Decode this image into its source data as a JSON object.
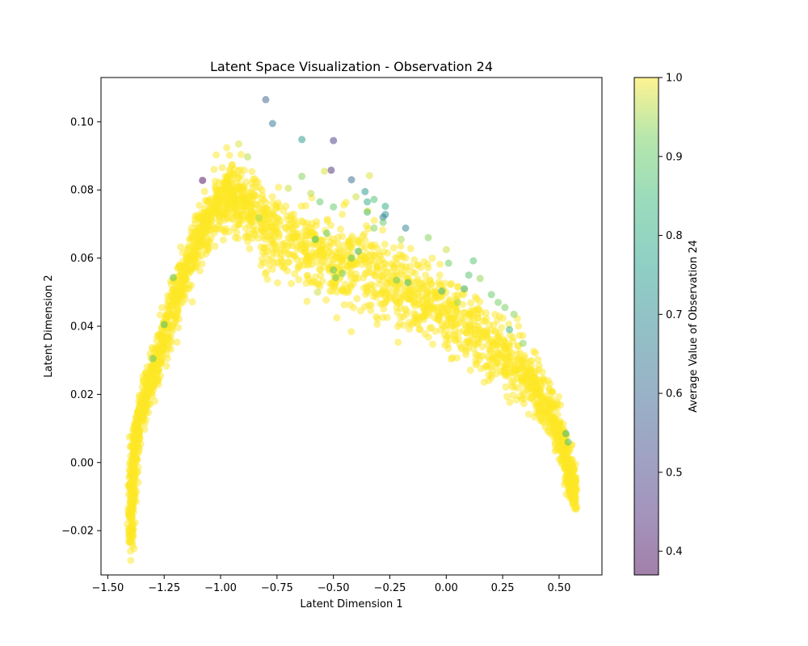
{
  "chart_data": {
    "type": "scatter",
    "title": "Latent Space Visualization - Observation 24",
    "xlabel": "Latent Dimension 1",
    "ylabel": "Latent Dimension 2",
    "xlim": [
      -1.53,
      0.69
    ],
    "ylim": [
      -0.033,
      0.113
    ],
    "xticks": [
      -1.5,
      -1.25,
      -1.0,
      -0.75,
      -0.5,
      -0.25,
      0.0,
      0.25,
      0.5
    ],
    "xtick_labels": [
      "−1.50",
      "−1.25",
      "−1.00",
      "−0.75",
      "−0.50",
      "−0.25",
      "0.00",
      "0.25",
      "0.50"
    ],
    "yticks": [
      -0.02,
      0.0,
      0.02,
      0.04,
      0.06,
      0.08,
      0.1
    ],
    "ytick_labels": [
      "−0.02",
      "0.00",
      "0.02",
      "0.04",
      "0.06",
      "0.08",
      "0.10"
    ],
    "grid": false,
    "marker_alpha": 0.5,
    "colormap": "viridis",
    "colorbar": {
      "label": "Average Value of Observation 24",
      "range": [
        0.37,
        1.0
      ],
      "ticks": [
        0.4,
        0.5,
        0.6,
        0.7,
        0.8,
        0.9,
        1.0
      ],
      "tick_labels": [
        "0.4",
        "0.5",
        "0.6",
        "0.7",
        "0.8",
        "0.9",
        "1.0"
      ]
    },
    "bulk_cloud": {
      "description_value": 1.0,
      "centerline": [
        {
          "x": -1.4,
          "y": -0.024
        },
        {
          "x": -1.39,
          "y": -0.005
        },
        {
          "x": -1.37,
          "y": 0.01
        },
        {
          "x": -1.33,
          "y": 0.02
        },
        {
          "x": -1.27,
          "y": 0.033
        },
        {
          "x": -1.2,
          "y": 0.048
        },
        {
          "x": -1.12,
          "y": 0.062
        },
        {
          "x": -1.05,
          "y": 0.073
        },
        {
          "x": -0.97,
          "y": 0.078
        },
        {
          "x": -0.9,
          "y": 0.076
        },
        {
          "x": -0.8,
          "y": 0.069
        },
        {
          "x": -0.65,
          "y": 0.064
        },
        {
          "x": -0.5,
          "y": 0.06
        },
        {
          "x": -0.35,
          "y": 0.056
        },
        {
          "x": -0.2,
          "y": 0.051
        },
        {
          "x": -0.05,
          "y": 0.046
        },
        {
          "x": 0.1,
          "y": 0.04
        },
        {
          "x": 0.25,
          "y": 0.032
        },
        {
          "x": 0.38,
          "y": 0.024
        },
        {
          "x": 0.47,
          "y": 0.014
        },
        {
          "x": 0.52,
          "y": 0.004
        },
        {
          "x": 0.55,
          "y": -0.004
        },
        {
          "x": 0.57,
          "y": -0.01
        }
      ],
      "half_thickness": [
        0.003,
        0.003,
        0.003,
        0.004,
        0.005,
        0.005,
        0.005,
        0.005,
        0.006,
        0.006,
        0.007,
        0.007,
        0.008,
        0.008,
        0.008,
        0.007,
        0.007,
        0.006,
        0.005,
        0.004,
        0.004,
        0.003,
        0.003
      ]
    },
    "points": [
      {
        "x": -0.8,
        "y": 0.1065,
        "v": 0.58
      },
      {
        "x": -0.77,
        "y": 0.0995,
        "v": 0.64
      },
      {
        "x": -0.64,
        "y": 0.0948,
        "v": 0.74
      },
      {
        "x": -0.5,
        "y": 0.0945,
        "v": 0.48
      },
      {
        "x": -1.08,
        "y": 0.0828,
        "v": 0.38
      },
      {
        "x": -0.51,
        "y": 0.0858,
        "v": 0.45
      },
      {
        "x": -0.42,
        "y": 0.083,
        "v": 0.6
      },
      {
        "x": -0.92,
        "y": 0.0935,
        "v": 0.98
      },
      {
        "x": -0.88,
        "y": 0.0897,
        "v": 0.96
      },
      {
        "x": -0.54,
        "y": 0.0855,
        "v": 0.98
      },
      {
        "x": -0.34,
        "y": 0.0842,
        "v": 0.98
      },
      {
        "x": -0.64,
        "y": 0.084,
        "v": 0.93
      },
      {
        "x": -0.36,
        "y": 0.0795,
        "v": 0.74
      },
      {
        "x": -0.35,
        "y": 0.0765,
        "v": 0.8
      },
      {
        "x": -0.32,
        "y": 0.0772,
        "v": 0.87
      },
      {
        "x": -0.27,
        "y": 0.0752,
        "v": 0.8
      },
      {
        "x": -0.28,
        "y": 0.072,
        "v": 0.66
      },
      {
        "x": -0.27,
        "y": 0.0728,
        "v": 0.72
      },
      {
        "x": -0.18,
        "y": 0.0688,
        "v": 0.68
      },
      {
        "x": -0.35,
        "y": 0.0735,
        "v": 0.85
      },
      {
        "x": -0.5,
        "y": 0.075,
        "v": 0.9
      },
      {
        "x": -0.56,
        "y": 0.0765,
        "v": 0.9
      },
      {
        "x": -0.28,
        "y": 0.0705,
        "v": 0.9
      },
      {
        "x": -0.32,
        "y": 0.0688,
        "v": 0.93
      },
      {
        "x": -0.08,
        "y": 0.066,
        "v": 0.93
      },
      {
        "x": 0.0,
        "y": 0.0625,
        "v": 0.97
      },
      {
        "x": -0.58,
        "y": 0.0655,
        "v": 0.88
      },
      {
        "x": -0.53,
        "y": 0.0673,
        "v": 0.9
      },
      {
        "x": -0.39,
        "y": 0.062,
        "v": 0.84
      },
      {
        "x": -0.42,
        "y": 0.06,
        "v": 0.88
      },
      {
        "x": -0.5,
        "y": 0.0565,
        "v": 0.88
      },
      {
        "x": -0.46,
        "y": 0.0555,
        "v": 0.92
      },
      {
        "x": -0.49,
        "y": 0.0543,
        "v": 0.9
      },
      {
        "x": -0.57,
        "y": 0.05,
        "v": 0.97
      },
      {
        "x": 0.01,
        "y": 0.0585,
        "v": 0.91
      },
      {
        "x": 0.12,
        "y": 0.0592,
        "v": 0.88
      },
      {
        "x": 0.1,
        "y": 0.055,
        "v": 0.88
      },
      {
        "x": 0.08,
        "y": 0.051,
        "v": 0.8
      },
      {
        "x": -0.02,
        "y": 0.0503,
        "v": 0.82
      },
      {
        "x": -0.22,
        "y": 0.0535,
        "v": 0.9
      },
      {
        "x": -0.17,
        "y": 0.0528,
        "v": 0.85
      },
      {
        "x": 0.15,
        "y": 0.054,
        "v": 0.94
      },
      {
        "x": 0.2,
        "y": 0.0493,
        "v": 0.9
      },
      {
        "x": 0.23,
        "y": 0.047,
        "v": 0.92
      },
      {
        "x": 0.26,
        "y": 0.0455,
        "v": 0.92
      },
      {
        "x": 0.3,
        "y": 0.0435,
        "v": 0.93
      },
      {
        "x": 0.28,
        "y": 0.039,
        "v": 0.82
      },
      {
        "x": 0.34,
        "y": 0.035,
        "v": 0.93
      },
      {
        "x": 0.05,
        "y": 0.047,
        "v": 0.95
      },
      {
        "x": -1.21,
        "y": 0.0543,
        "v": 0.88
      },
      {
        "x": -1.25,
        "y": 0.0405,
        "v": 0.85
      },
      {
        "x": -1.3,
        "y": 0.0305,
        "v": 0.88
      },
      {
        "x": -0.83,
        "y": 0.0718,
        "v": 0.95
      },
      {
        "x": -0.58,
        "y": 0.0655,
        "v": 0.93
      },
      {
        "x": 0.53,
        "y": 0.0085,
        "v": 0.82
      },
      {
        "x": 0.54,
        "y": 0.006,
        "v": 0.86
      },
      {
        "x": -0.2,
        "y": 0.0655,
        "v": 0.95
      },
      {
        "x": -0.6,
        "y": 0.079,
        "v": 0.96
      },
      {
        "x": -0.4,
        "y": 0.078,
        "v": 0.97
      },
      {
        "x": -0.7,
        "y": 0.0805,
        "v": 0.97
      }
    ]
  }
}
